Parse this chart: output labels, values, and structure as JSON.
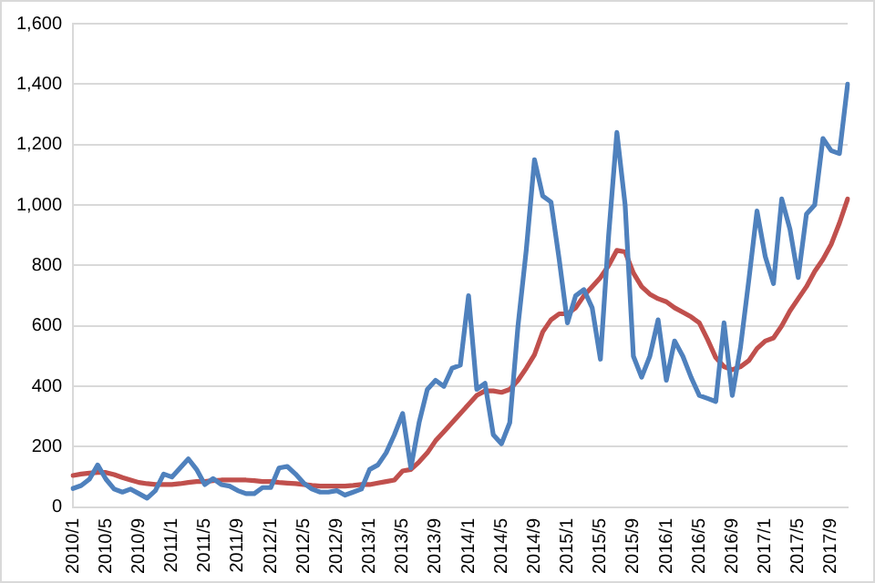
{
  "chart_data": {
    "type": "line",
    "categories": [
      "2010/1",
      null,
      null,
      null,
      "2010/5",
      null,
      null,
      null,
      "2010/9",
      null,
      null,
      null,
      "2011/1",
      null,
      null,
      null,
      "2011/5",
      null,
      null,
      null,
      "2011/9",
      null,
      null,
      null,
      "2012/1",
      null,
      null,
      null,
      "2012/5",
      null,
      null,
      null,
      "2012/9",
      null,
      null,
      null,
      "2013/1",
      null,
      null,
      null,
      "2013/5",
      null,
      null,
      null,
      "2013/9",
      null,
      null,
      null,
      "2014/1",
      null,
      null,
      null,
      "2014/5",
      null,
      null,
      null,
      "2014/9",
      null,
      null,
      null,
      "2015/1",
      null,
      null,
      null,
      "2015/5",
      null,
      null,
      null,
      "2015/9",
      null,
      null,
      null,
      "2016/1",
      null,
      null,
      null,
      "2016/5",
      null,
      null,
      null,
      "2016/9",
      null,
      null,
      null,
      "2017/1",
      null,
      null,
      null,
      "2017/5",
      null,
      null,
      null,
      "2017/9",
      null,
      null
    ],
    "series": [
      {
        "color": "#4f81bd",
        "values": [
          62,
          72,
          93,
          140,
          93,
          60,
          50,
          60,
          45,
          30,
          55,
          110,
          100,
          130,
          160,
          125,
          75,
          95,
          75,
          70,
          55,
          45,
          45,
          65,
          65,
          130,
          135,
          110,
          80,
          60,
          50,
          50,
          55,
          40,
          50,
          60,
          125,
          140,
          180,
          240,
          310,
          130,
          280,
          390,
          420,
          400,
          460,
          470,
          700,
          390,
          410,
          240,
          210,
          280,
          600,
          850,
          1150,
          1030,
          1010,
          820,
          610,
          700,
          720,
          660,
          490,
          900,
          1240,
          1000,
          500,
          430,
          500,
          620,
          420,
          550,
          500,
          430,
          370,
          360,
          350,
          610,
          370,
          530,
          750,
          980,
          830,
          740,
          1020,
          920,
          760,
          970,
          1000,
          1220,
          1180,
          1170,
          1400
        ]
      },
      {
        "color": "#c0504d",
        "values": [
          105,
          110,
          113,
          115,
          115,
          108,
          98,
          90,
          82,
          78,
          75,
          75,
          75,
          78,
          82,
          85,
          85,
          88,
          90,
          90,
          90,
          90,
          88,
          85,
          85,
          82,
          80,
          78,
          75,
          72,
          70,
          70,
          70,
          70,
          72,
          75,
          75,
          80,
          85,
          90,
          120,
          125,
          150,
          180,
          220,
          250,
          280,
          310,
          340,
          370,
          385,
          385,
          380,
          390,
          420,
          460,
          505,
          580,
          620,
          640,
          640,
          660,
          700,
          730,
          760,
          800,
          850,
          845,
          775,
          730,
          705,
          690,
          680,
          660,
          645,
          630,
          610,
          555,
          495,
          465,
          455,
          465,
          485,
          525,
          550,
          560,
          600,
          650,
          690,
          730,
          780,
          820,
          870,
          940,
          1020
        ]
      }
    ],
    "ylim": [
      0,
      1600
    ],
    "yticks": [
      0,
      200,
      400,
      600,
      800,
      {
        "value": 1000,
        "label": "1,000"
      },
      {
        "value": 1200,
        "label": "1,200"
      },
      {
        "value": 1400,
        "label": "1,400"
      },
      {
        "value": 1600,
        "label": "1,600"
      }
    ],
    "grid": "y",
    "legend": false,
    "marker": "none",
    "line_style": "solid"
  }
}
